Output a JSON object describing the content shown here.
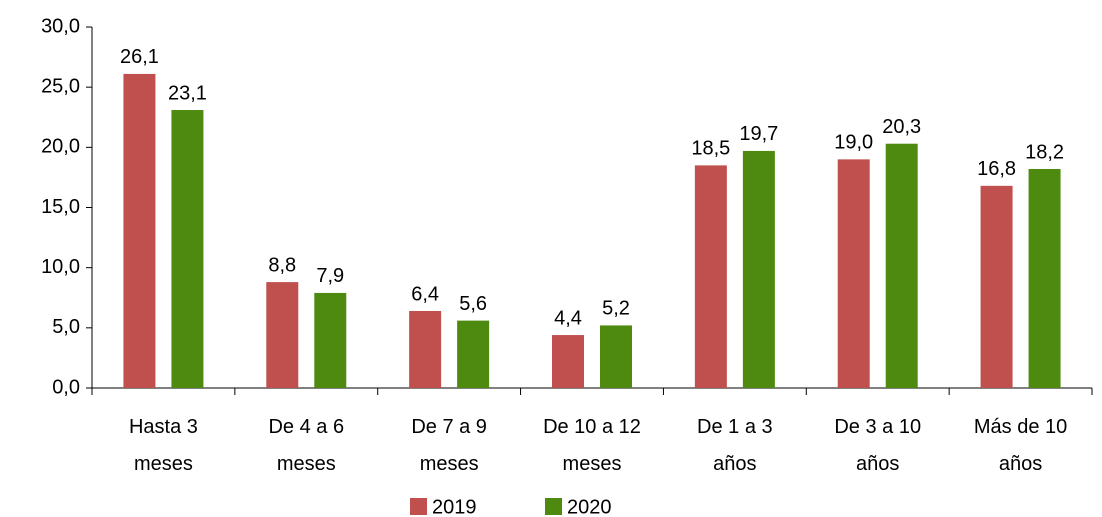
{
  "chart_data": {
    "type": "bar",
    "categories": [
      "Hasta 3\nmeses",
      "De 4 a 6\nmeses",
      "De 7 a 9\nmeses",
      "De 10 a 12\nmeses",
      "De 1 a 3\naños",
      "De 3 a 10\naños",
      "Más de 10\naños"
    ],
    "series": [
      {
        "name": "2019",
        "color": "#c0504d",
        "values": [
          26.1,
          8.8,
          6.4,
          4.4,
          18.5,
          19.0,
          16.8
        ],
        "value_labels": [
          "26,1",
          "8,8",
          "6,4",
          "4,4",
          "18,5",
          "19,0",
          "16,8"
        ]
      },
      {
        "name": "2020",
        "color": "#4f8a10",
        "values": [
          23.1,
          7.9,
          5.6,
          5.2,
          19.7,
          20.3,
          18.2
        ],
        "value_labels": [
          "23,1",
          "7,9",
          "5,6",
          "5,2",
          "19,7",
          "20,3",
          "18,2"
        ]
      }
    ],
    "ylim": [
      0,
      30
    ],
    "yticks": [
      {
        "value": 0,
        "label": "0,0"
      },
      {
        "value": 5,
        "label": "5,0"
      },
      {
        "value": 10,
        "label": "10,0"
      },
      {
        "value": 15,
        "label": "15,0"
      },
      {
        "value": 20,
        "label": "20,0"
      },
      {
        "value": 25,
        "label": "25,0"
      },
      {
        "value": 30,
        "label": "30,0"
      }
    ],
    "grid": false,
    "legend": "bottom"
  }
}
